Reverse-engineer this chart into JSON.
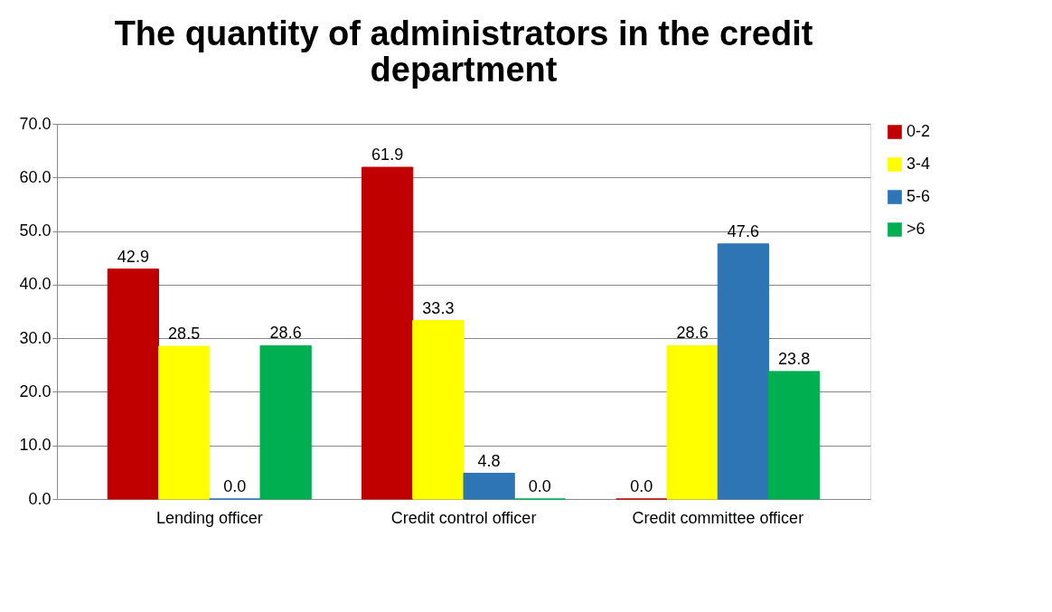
{
  "chart_data": {
    "type": "bar",
    "title": "The quantity of administrators in the credit department",
    "categories": [
      "Lending officer",
      "Credit control officer",
      "Credit committee officer"
    ],
    "series": [
      {
        "name": "0-2",
        "color": "#c00000",
        "values": [
          42.9,
          61.9,
          0
        ],
        "value_labels": [
          "42.9",
          "61.9",
          "0.0"
        ]
      },
      {
        "name": "3-4",
        "color": "#ffff00",
        "values": [
          28.5,
          33.3,
          28.6
        ],
        "value_labels": [
          "28.5",
          "33.3",
          "28.6"
        ]
      },
      {
        "name": "5-6",
        "color": "#2e75b6",
        "values": [
          0,
          4.8,
          47.6
        ],
        "value_labels": [
          "0.0",
          "4.8",
          "47.6"
        ]
      },
      {
        "name": ">6",
        "color": "#00b050",
        "values": [
          28.6,
          0,
          23.8
        ],
        "value_labels": [
          "28.6",
          "0.0",
          "23.8"
        ]
      }
    ],
    "ylim": [
      0,
      70
    ],
    "yticks": [
      {
        "value": 0,
        "label": "0.0"
      },
      {
        "value": 10,
        "label": "10.0"
      },
      {
        "value": 20,
        "label": "20.0"
      },
      {
        "value": 30,
        "label": "30.0"
      },
      {
        "value": 40,
        "label": "40.0"
      },
      {
        "value": 50,
        "label": "50.0"
      },
      {
        "value": 60,
        "label": "60.0"
      },
      {
        "value": 70,
        "label": "70.0"
      }
    ],
    "grid": "y",
    "legend": "right"
  }
}
